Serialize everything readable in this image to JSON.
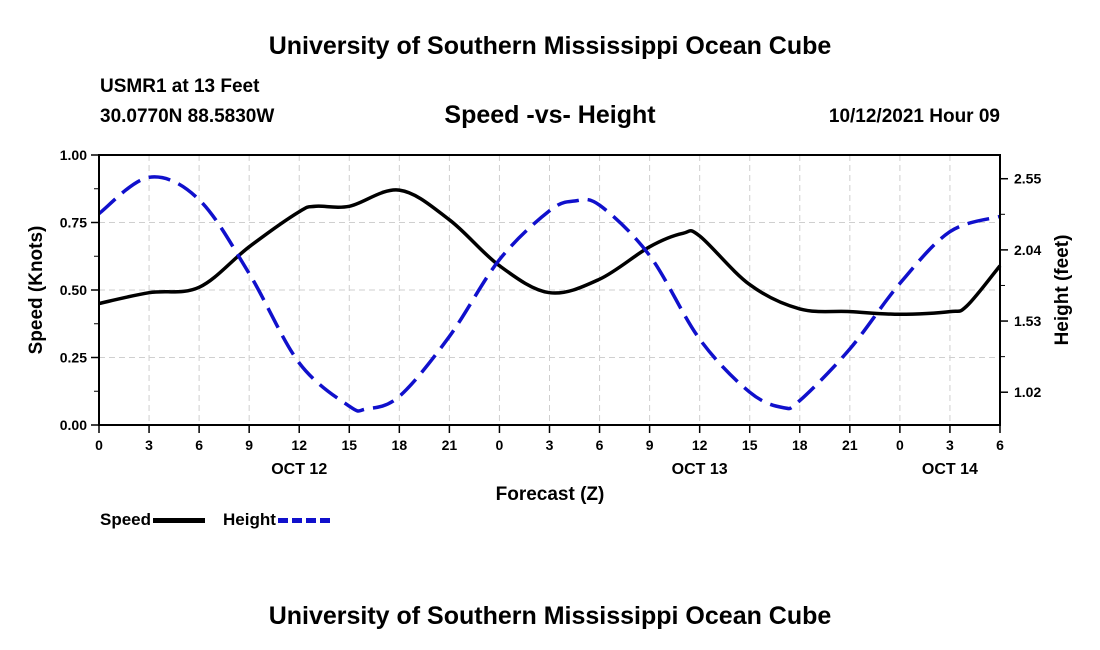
{
  "header": {
    "title": "University of Southern Mississippi Ocean Cube",
    "station": "USMR1 at 13 Feet",
    "coords": "30.0770N  88.5830W",
    "subtitle": "Speed -vs- Height",
    "datetime": "10/12/2021 Hour 09"
  },
  "footer": {
    "title": "University of Southern Mississippi Ocean Cube"
  },
  "legend": {
    "speed_label": "Speed",
    "height_label": "Height",
    "speed_color": "#000000",
    "height_color": "#1010cc"
  },
  "chart_data": {
    "type": "line",
    "title": "Speed -vs- Height",
    "xlabel": "Forecast (Z)",
    "ylabel_left": "Speed (Knots)",
    "ylabel_right": "Height (feet)",
    "x_range_hours": [
      0,
      54
    ],
    "x_ticks": [
      {
        "h": 0,
        "label": "0"
      },
      {
        "h": 3,
        "label": "3"
      },
      {
        "h": 6,
        "label": "6"
      },
      {
        "h": 9,
        "label": "9"
      },
      {
        "h": 12,
        "label": "12"
      },
      {
        "h": 15,
        "label": "15"
      },
      {
        "h": 18,
        "label": "18"
      },
      {
        "h": 21,
        "label": "21"
      },
      {
        "h": 24,
        "label": "0"
      },
      {
        "h": 27,
        "label": "3"
      },
      {
        "h": 30,
        "label": "6"
      },
      {
        "h": 33,
        "label": "9"
      },
      {
        "h": 36,
        "label": "12"
      },
      {
        "h": 39,
        "label": "15"
      },
      {
        "h": 42,
        "label": "18"
      },
      {
        "h": 45,
        "label": "21"
      },
      {
        "h": 48,
        "label": "0"
      },
      {
        "h": 51,
        "label": "3"
      },
      {
        "h": 54,
        "label": "6"
      }
    ],
    "date_labels": [
      {
        "h": 12,
        "label": "OCT 12"
      },
      {
        "h": 36,
        "label": "OCT 13"
      },
      {
        "h": 51,
        "label": "OCT 14"
      }
    ],
    "y_left": {
      "min": 0,
      "max": 1,
      "ticks": [
        0,
        0.25,
        0.5,
        0.75,
        1.0
      ],
      "tick_labels": [
        "0.00",
        "0.25",
        "0.50",
        "0.75",
        "1.00"
      ]
    },
    "y_right": {
      "min": 0.785,
      "max": 2.72,
      "ticks": [
        1.02,
        1.53,
        2.04,
        2.55
      ],
      "tick_labels": [
        "1.02",
        "1.53",
        "2.04",
        "2.55"
      ]
    },
    "grid": true,
    "legend_position": "bottom-left",
    "series": [
      {
        "name": "Speed",
        "axis": "left",
        "color": "#000000",
        "style": "solid",
        "points": [
          [
            0,
            0.45
          ],
          [
            3,
            0.49
          ],
          [
            6,
            0.51
          ],
          [
            9,
            0.66
          ],
          [
            12,
            0.79
          ],
          [
            13,
            0.81
          ],
          [
            15,
            0.81
          ],
          [
            18,
            0.87
          ],
          [
            21,
            0.76
          ],
          [
            24,
            0.59
          ],
          [
            27,
            0.49
          ],
          [
            30,
            0.54
          ],
          [
            33,
            0.66
          ],
          [
            35,
            0.71
          ],
          [
            36,
            0.7
          ],
          [
            39,
            0.52
          ],
          [
            42,
            0.43
          ],
          [
            45,
            0.42
          ],
          [
            48,
            0.41
          ],
          [
            51,
            0.42
          ],
          [
            52,
            0.44
          ],
          [
            54,
            0.59
          ]
        ]
      },
      {
        "name": "Height",
        "axis": "right",
        "color": "#1010cc",
        "style": "dashed",
        "points": [
          [
            0,
            2.3
          ],
          [
            3,
            2.56
          ],
          [
            6,
            2.4
          ],
          [
            9,
            1.87
          ],
          [
            12,
            1.23
          ],
          [
            15,
            0.92
          ],
          [
            16,
            0.9
          ],
          [
            18,
            0.99
          ],
          [
            21,
            1.42
          ],
          [
            24,
            1.97
          ],
          [
            27,
            2.32
          ],
          [
            28.5,
            2.39
          ],
          [
            30,
            2.36
          ],
          [
            33,
            2.0
          ],
          [
            36,
            1.4
          ],
          [
            39,
            1.02
          ],
          [
            41,
            0.91
          ],
          [
            42,
            0.96
          ],
          [
            45,
            1.33
          ],
          [
            48,
            1.8
          ],
          [
            51,
            2.17
          ],
          [
            54,
            2.28
          ]
        ]
      }
    ]
  }
}
